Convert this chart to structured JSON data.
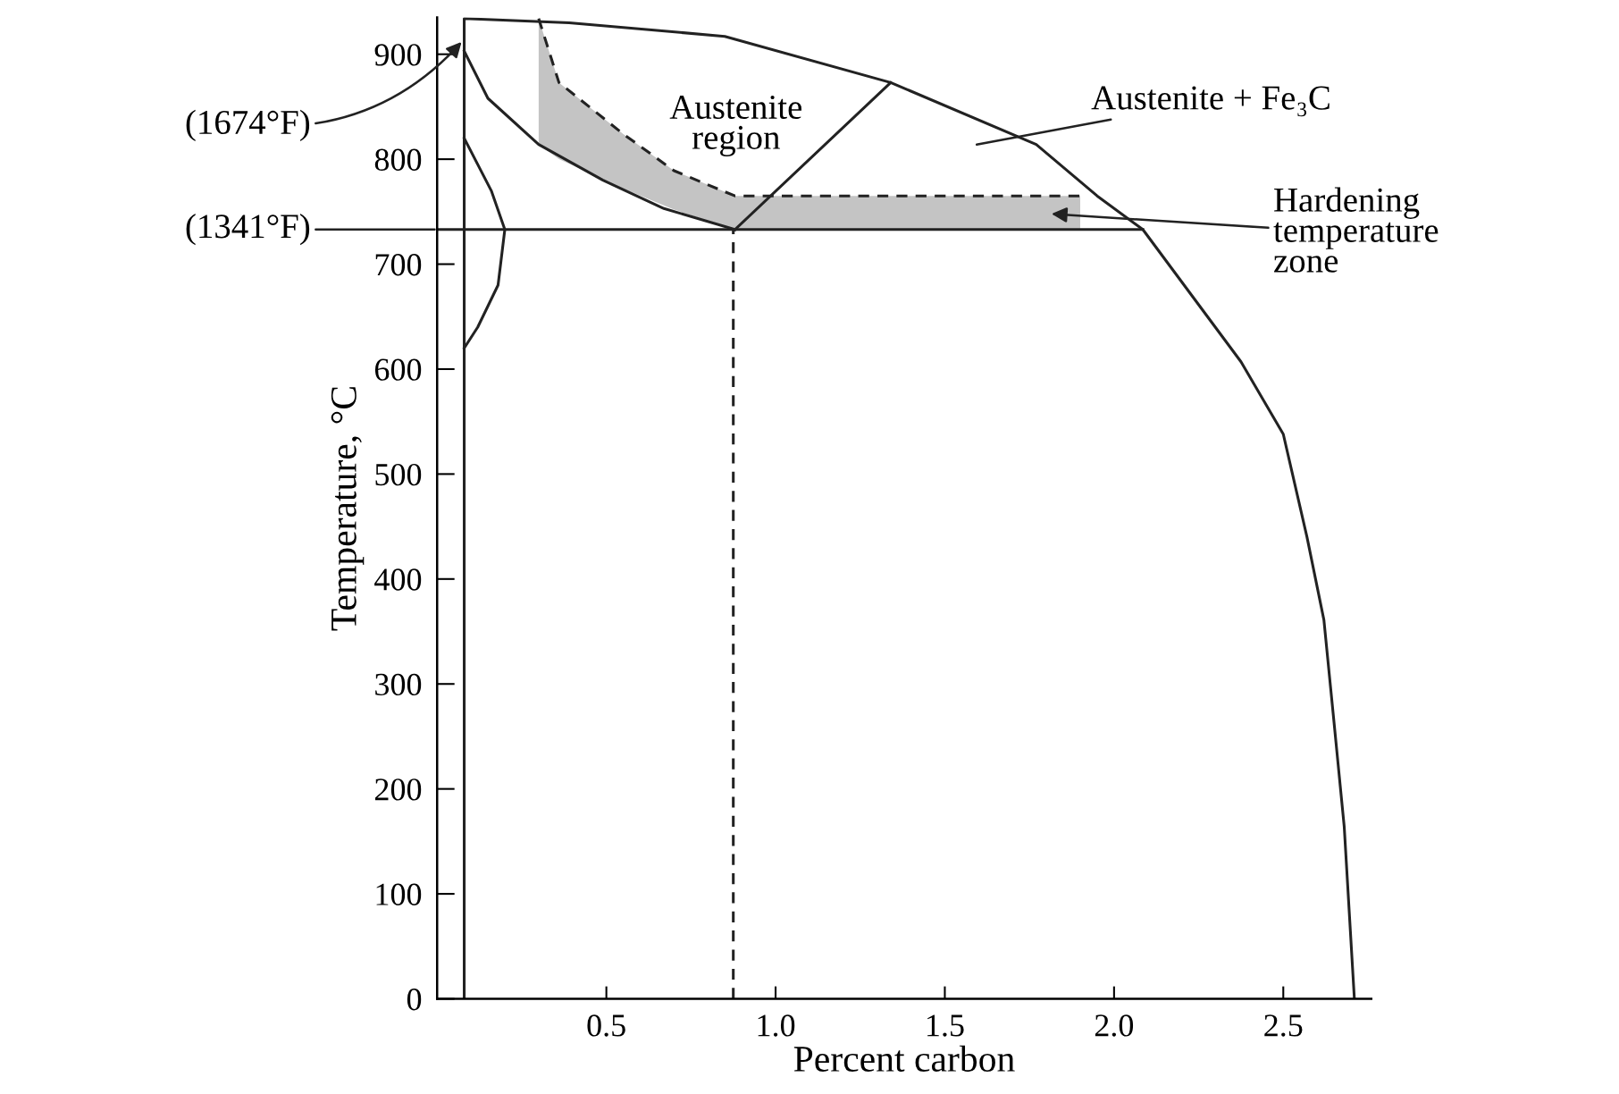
{
  "chart_data": {
    "type": "line",
    "xlabel": "Percent carbon",
    "ylabel": "Temperature, °C",
    "xlim": [
      0,
      2.76
    ],
    "ylim": [
      0,
      935
    ],
    "xticks": [
      0.5,
      {
        "value": 1,
        "label": "1.0"
      },
      1.5,
      {
        "value": 2,
        "label": "2.0"
      },
      2.5
    ],
    "yticks": [
      0,
      100,
      200,
      300,
      400,
      500,
      600,
      700,
      800,
      900
    ],
    "grid": false,
    "legend": false,
    "marker": "none",
    "series": [
      {
        "color": "#222222",
        "line_style": "solid",
        "x": [
          0.08,
          0.08,
          0.39,
          0.85,
          1.34,
          1.77,
          1.95,
          2.085,
          2.375,
          2.5,
          2.57,
          2.62,
          2.65,
          2.68,
          2.71
        ],
        "values": [
          0,
          934,
          930,
          917,
          873,
          814,
          765,
          733,
          607,
          538,
          440,
          361,
          263,
          164,
          0
        ]
      },
      {
        "color": "#222222",
        "line_style": "dashed",
        "x": [
          0.3,
          0.36,
          0.55,
          0.7,
          0.88,
          1.9
        ],
        "values": [
          934,
          873,
          824,
          789,
          765,
          765
        ],
        "lower": [
          814,
          800,
          772,
          752,
          733,
          733
        ],
        "upper": [
          934,
          873,
          824,
          789,
          765,
          765
        ]
      },
      {
        "color": "#222222",
        "line_style": "solid",
        "x": [
          0.08,
          0.15,
          0.3,
          0.49,
          0.67,
          0.88
        ],
        "values": [
          903,
          858,
          814,
          780,
          753,
          733
        ]
      },
      {
        "color": "#222222",
        "line_style": "solid",
        "x": [
          0.88,
          1.34
        ],
        "values": [
          733,
          873
        ]
      },
      {
        "color": "#222222",
        "line_style": "solid",
        "x": [
          0.0,
          2.085
        ],
        "values": [
          733,
          733
        ]
      },
      {
        "color": "#222222",
        "line_style": "dashed",
        "x": [
          0.875,
          0.875
        ],
        "values": [
          0,
          733
        ]
      },
      {
        "color": "#222222",
        "line_style": "solid",
        "x": [
          0.08,
          0.16,
          0.2,
          0.18,
          0.12,
          0.08
        ],
        "values": [
          820,
          770,
          733,
          680,
          640,
          620
        ]
      }
    ],
    "annotations": [
      "(1674°F)",
      "(1341°F)",
      "Austenite\nregion",
      "Austenite + Fe₃C",
      "Hardening\ntemperature\nzone"
    ]
  }
}
